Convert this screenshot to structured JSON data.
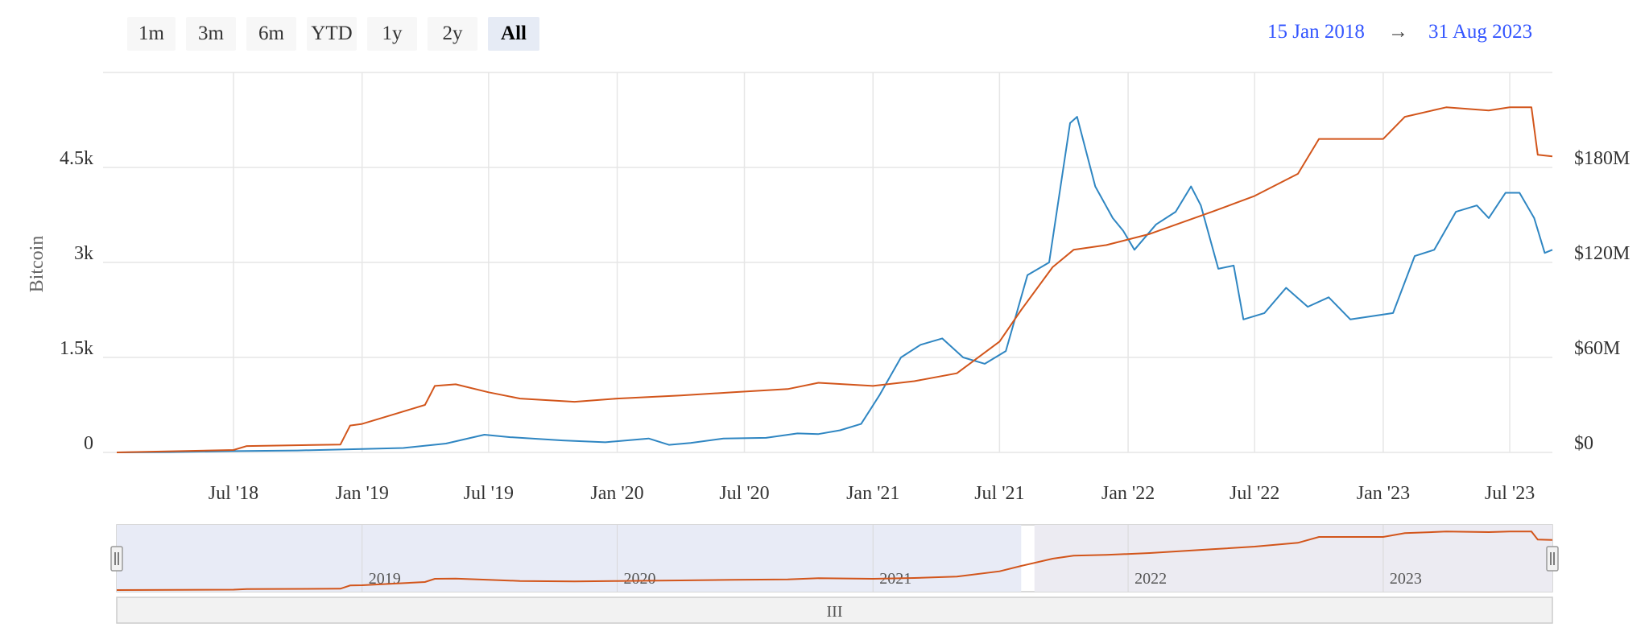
{
  "range_selector": {
    "buttons": [
      {
        "label": "1m",
        "selected": false
      },
      {
        "label": "3m",
        "selected": false
      },
      {
        "label": "6m",
        "selected": false
      },
      {
        "label": "YTD",
        "selected": false
      },
      {
        "label": "1y",
        "selected": false
      },
      {
        "label": "2y",
        "selected": false
      },
      {
        "label": "All",
        "selected": true
      }
    ],
    "from_date": "15 Jan 2018",
    "arrow": "→",
    "to_date": "31 Aug 2023"
  },
  "colors": {
    "blue_series": "#2f86c2",
    "orange_series": "#d2551b",
    "grid": "#e6e6e6",
    "navigator_mask": "#e8ebf6"
  },
  "chart_data": {
    "type": "line",
    "title": "",
    "x_range": [
      "2018-01-15",
      "2023-08-31"
    ],
    "x_tick_labels": [
      "Jul '18",
      "Jan '19",
      "Jul '19",
      "Jan '20",
      "Jul '20",
      "Jan '21",
      "Jul '21",
      "Jan '22",
      "Jul '22",
      "Jan '23",
      "Jul '23"
    ],
    "y_axis_left": {
      "title": "Bitcoin",
      "range": [
        0,
        6000
      ],
      "ticks": [
        0,
        1500,
        3000,
        4500
      ],
      "tick_labels": [
        "0",
        "1.5k",
        "3k",
        "4.5k"
      ]
    },
    "y_axis_right": {
      "title": "",
      "range": [
        0,
        240000000
      ],
      "ticks": [
        0,
        60000000,
        120000000,
        180000000
      ],
      "tick_labels": [
        "$0",
        "$60M",
        "$120M",
        "$180M"
      ]
    },
    "grid": true,
    "legend": "none",
    "series": [
      {
        "axis": "left",
        "color": "#2f86c2",
        "points": [
          [
            "2018-01-15",
            0
          ],
          [
            "2018-04-01",
            5
          ],
          [
            "2018-07-01",
            20
          ],
          [
            "2018-10-01",
            30
          ],
          [
            "2019-01-01",
            55
          ],
          [
            "2019-03-01",
            70
          ],
          [
            "2019-05-01",
            140
          ],
          [
            "2019-06-25",
            280
          ],
          [
            "2019-08-01",
            240
          ],
          [
            "2019-09-01",
            220
          ],
          [
            "2019-10-15",
            190
          ],
          [
            "2019-12-15",
            160
          ],
          [
            "2020-02-15",
            220
          ],
          [
            "2020-03-15",
            120
          ],
          [
            "2020-04-15",
            150
          ],
          [
            "2020-06-01",
            220
          ],
          [
            "2020-08-01",
            230
          ],
          [
            "2020-09-15",
            300
          ],
          [
            "2020-10-15",
            290
          ],
          [
            "2020-11-15",
            350
          ],
          [
            "2020-12-15",
            450
          ],
          [
            "2021-01-10",
            900
          ],
          [
            "2021-02-10",
            1500
          ],
          [
            "2021-03-10",
            1700
          ],
          [
            "2021-04-10",
            1800
          ],
          [
            "2021-05-10",
            1500
          ],
          [
            "2021-06-10",
            1400
          ],
          [
            "2021-07-10",
            1600
          ],
          [
            "2021-08-10",
            2800
          ],
          [
            "2021-09-10",
            3000
          ],
          [
            "2021-10-10",
            5200
          ],
          [
            "2021-10-20",
            5300
          ],
          [
            "2021-11-15",
            4200
          ],
          [
            "2021-12-10",
            3700
          ],
          [
            "2021-12-25",
            3500
          ],
          [
            "2022-01-10",
            3200
          ],
          [
            "2022-02-10",
            3600
          ],
          [
            "2022-03-10",
            3800
          ],
          [
            "2022-04-01",
            4200
          ],
          [
            "2022-04-15",
            3900
          ],
          [
            "2022-05-10",
            2900
          ],
          [
            "2022-06-01",
            2950
          ],
          [
            "2022-06-15",
            2100
          ],
          [
            "2022-07-15",
            2200
          ],
          [
            "2022-08-15",
            2600
          ],
          [
            "2022-09-15",
            2300
          ],
          [
            "2022-10-15",
            2450
          ],
          [
            "2022-11-15",
            2100
          ],
          [
            "2022-12-15",
            2150
          ],
          [
            "2023-01-15",
            2200
          ],
          [
            "2023-02-15",
            3100
          ],
          [
            "2023-03-15",
            3200
          ],
          [
            "2023-04-15",
            3800
          ],
          [
            "2023-05-15",
            3900
          ],
          [
            "2023-06-01",
            3700
          ],
          [
            "2023-06-25",
            4100
          ],
          [
            "2023-07-15",
            4100
          ],
          [
            "2023-08-05",
            3700
          ],
          [
            "2023-08-20",
            3150
          ],
          [
            "2023-08-31",
            3200
          ]
        ]
      },
      {
        "axis": "right",
        "color": "#d2551b",
        "points": [
          [
            "2018-01-15",
            0
          ],
          [
            "2018-07-01",
            1500000
          ],
          [
            "2018-07-20",
            4000000
          ],
          [
            "2018-12-01",
            5000000
          ],
          [
            "2018-12-15",
            17000000
          ],
          [
            "2019-01-01",
            18000000
          ],
          [
            "2019-02-15",
            24000000
          ],
          [
            "2019-04-01",
            30000000
          ],
          [
            "2019-04-15",
            42000000
          ],
          [
            "2019-05-15",
            43000000
          ],
          [
            "2019-07-01",
            38000000
          ],
          [
            "2019-08-15",
            34000000
          ],
          [
            "2019-11-01",
            32000000
          ],
          [
            "2020-01-01",
            34000000
          ],
          [
            "2020-04-01",
            36000000
          ],
          [
            "2020-06-15",
            38000000
          ],
          [
            "2020-09-01",
            40000000
          ],
          [
            "2020-10-15",
            44000000
          ],
          [
            "2021-01-01",
            42000000
          ],
          [
            "2021-03-01",
            45000000
          ],
          [
            "2021-05-01",
            50000000
          ],
          [
            "2021-07-01",
            70000000
          ],
          [
            "2021-08-01",
            90000000
          ],
          [
            "2021-09-15",
            117000000
          ],
          [
            "2021-10-15",
            128000000
          ],
          [
            "2021-12-01",
            131000000
          ],
          [
            "2022-02-01",
            138000000
          ],
          [
            "2022-05-01",
            152000000
          ],
          [
            "2022-07-01",
            162000000
          ],
          [
            "2022-09-01",
            176000000
          ],
          [
            "2022-10-01",
            198000000
          ],
          [
            "2023-01-01",
            198000000
          ],
          [
            "2023-02-01",
            212000000
          ],
          [
            "2023-04-01",
            218000000
          ],
          [
            "2023-06-01",
            216000000
          ],
          [
            "2023-07-01",
            218000000
          ],
          [
            "2023-08-01",
            218000000
          ],
          [
            "2023-08-10",
            188000000
          ],
          [
            "2023-08-31",
            187000000
          ]
        ]
      }
    ],
    "navigator": {
      "labels": [
        "2019",
        "2020",
        "2021",
        "2022",
        "2023"
      ],
      "series_color": "#d2551b",
      "scrollbar_label": "III"
    }
  }
}
